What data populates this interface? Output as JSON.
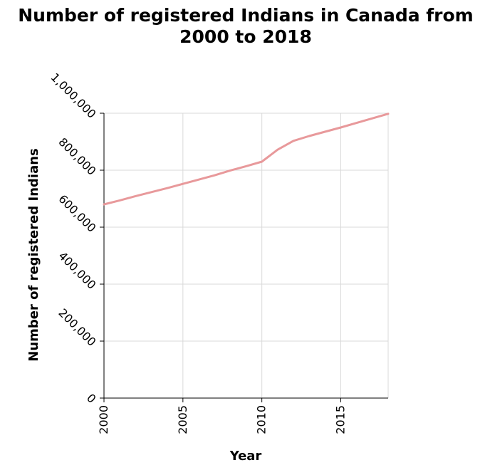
{
  "chart_data": {
    "type": "line",
    "title_lines": [
      "Number of registered Indians in Canada from",
      "2000 to 2018"
    ],
    "xlabel": "Year",
    "ylabel": "Number of registered Indians",
    "xlim": [
      2000,
      2018
    ],
    "ylim": [
      0,
      1000000
    ],
    "x_ticks": [
      2000,
      2005,
      2010,
      2015
    ],
    "x_tick_labels": [
      "2000",
      "2005",
      "2010",
      "2015"
    ],
    "y_ticks": [
      0,
      200000,
      400000,
      600000,
      800000,
      1000000
    ],
    "y_tick_labels": [
      "0",
      "200,000",
      "400,000",
      "600,000",
      "800,000",
      "1,000,000"
    ],
    "grid": true,
    "series": [
      {
        "color": "#e8999b",
        "x": [
          2000,
          2001,
          2002,
          2003,
          2004,
          2005,
          2006,
          2007,
          2008,
          2009,
          2010,
          2011,
          2012,
          2013,
          2014,
          2015,
          2016,
          2017,
          2018
        ],
        "y": [
          680000,
          694000,
          709000,
          723000,
          737000,
          752000,
          767000,
          782000,
          799000,
          814000,
          830000,
          872000,
          903000,
          920000,
          935000,
          950000,
          966000,
          982000,
          998000
        ]
      }
    ]
  }
}
